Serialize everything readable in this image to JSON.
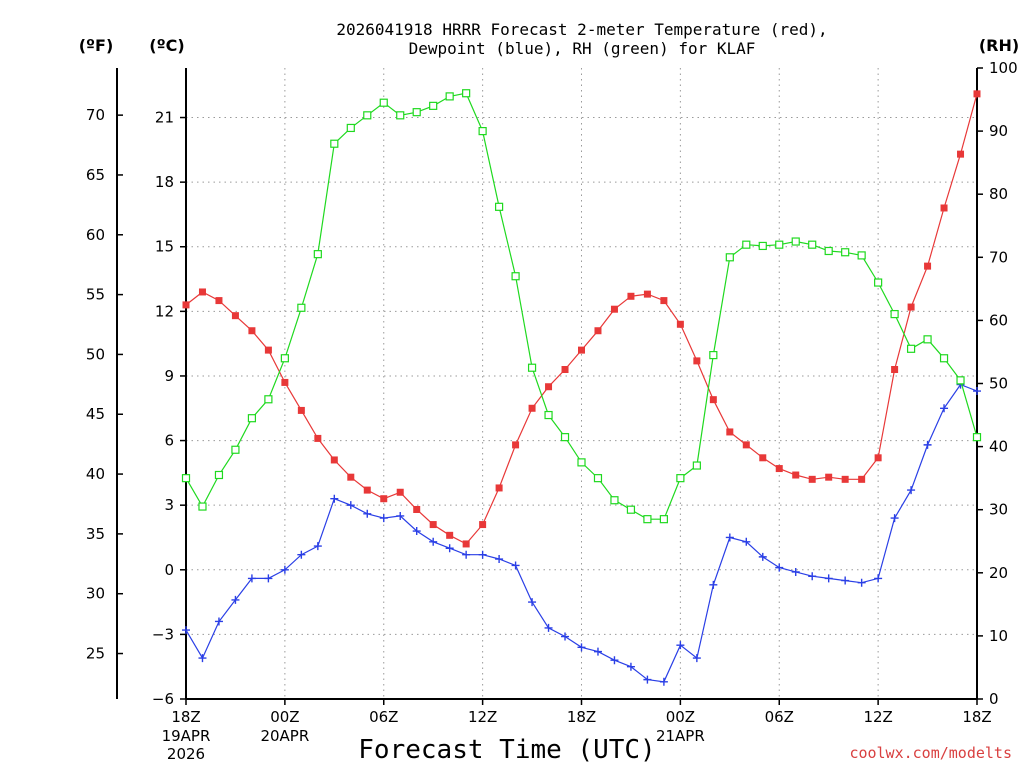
{
  "chart_data": {
    "type": "line",
    "title_lines": [
      "2026041918 HRRR Forecast 2-meter Temperature (red),",
      "Dewpoint (blue), RH (green) for KLAF"
    ],
    "xlabel": "Forecast Time (UTC)",
    "credit": "coolwx.com/modelts",
    "units": {
      "f": "(ºF)",
      "c": "(ºC)",
      "rh": "(RH)"
    },
    "x_range": [
      0,
      48
    ],
    "celsius_range": [
      -6,
      23.3
    ],
    "rh_range": [
      0,
      100
    ],
    "x_ticks": [
      {
        "h": 0,
        "label": "18Z",
        "extra": [
          "19APR",
          "2026"
        ]
      },
      {
        "h": 6,
        "label": "00Z",
        "extra": [
          "20APR"
        ]
      },
      {
        "h": 12,
        "label": "06Z",
        "extra": []
      },
      {
        "h": 18,
        "label": "12Z",
        "extra": []
      },
      {
        "h": 24,
        "label": "18Z",
        "extra": []
      },
      {
        "h": 30,
        "label": "00Z",
        "extra": [
          "21APR"
        ]
      },
      {
        "h": 36,
        "label": "06Z",
        "extra": []
      },
      {
        "h": 42,
        "label": "12Z",
        "extra": []
      },
      {
        "h": 48,
        "label": "18Z",
        "extra": []
      }
    ],
    "c_ticks": [
      {
        "v": -6,
        "label": "−6"
      },
      {
        "v": -3,
        "label": "−3"
      },
      {
        "v": 0,
        "label": "0"
      },
      {
        "v": 3,
        "label": "3"
      },
      {
        "v": 6,
        "label": "6"
      },
      {
        "v": 9,
        "label": "9"
      },
      {
        "v": 12,
        "label": "12"
      },
      {
        "v": 15,
        "label": "15"
      },
      {
        "v": 18,
        "label": "18"
      },
      {
        "v": 21,
        "label": "21"
      }
    ],
    "f_ticks": [
      {
        "v": 25,
        "label": "25"
      },
      {
        "v": 30,
        "label": "30"
      },
      {
        "v": 35,
        "label": "35"
      },
      {
        "v": 40,
        "label": "40"
      },
      {
        "v": 45,
        "label": "45"
      },
      {
        "v": 50,
        "label": "50"
      },
      {
        "v": 55,
        "label": "55"
      },
      {
        "v": 60,
        "label": "60"
      },
      {
        "v": 65,
        "label": "65"
      },
      {
        "v": 70,
        "label": "70"
      }
    ],
    "rh_ticks": [
      {
        "v": 0,
        "label": "0"
      },
      {
        "v": 10,
        "label": "10"
      },
      {
        "v": 20,
        "label": "20"
      },
      {
        "v": 30,
        "label": "30"
      },
      {
        "v": 40,
        "label": "40"
      },
      {
        "v": 50,
        "label": "50"
      },
      {
        "v": 60,
        "label": "60"
      },
      {
        "v": 70,
        "label": "70"
      },
      {
        "v": 80,
        "label": "80"
      },
      {
        "v": 90,
        "label": "90"
      },
      {
        "v": 100,
        "label": "100"
      }
    ],
    "series": [
      {
        "name": "2-meter Temperature",
        "unit": "C",
        "color": "#e83838",
        "marker": "filled-square",
        "values": [
          12.3,
          12.9,
          12.5,
          11.8,
          11.1,
          10.2,
          8.7,
          7.4,
          6.1,
          5.1,
          4.3,
          3.7,
          3.3,
          3.6,
          2.8,
          2.1,
          1.6,
          1.2,
          2.1,
          3.8,
          5.8,
          7.5,
          8.5,
          9.3,
          10.2,
          11.1,
          12.1,
          12.7,
          12.8,
          12.5,
          11.4,
          9.7,
          7.9,
          6.4,
          5.8,
          5.2,
          4.7,
          4.4,
          4.2,
          4.3,
          4.2,
          4.2,
          5.2,
          9.3,
          12.2,
          14.1,
          16.8,
          19.3,
          22.1
        ]
      },
      {
        "name": "Dewpoint",
        "unit": "C",
        "color": "#2a3fe6",
        "marker": "plus",
        "values": [
          -2.8,
          -4.1,
          -2.4,
          -1.4,
          -0.4,
          -0.4,
          0.0,
          0.7,
          1.1,
          3.3,
          3.0,
          2.6,
          2.4,
          2.5,
          1.8,
          1.3,
          1.0,
          0.7,
          0.7,
          0.5,
          0.2,
          -1.5,
          -2.7,
          -3.1,
          -3.6,
          -3.8,
          -4.2,
          -4.5,
          -5.1,
          -5.2,
          -3.5,
          -4.1,
          -0.7,
          1.5,
          1.3,
          0.6,
          0.1,
          -0.1,
          -0.3,
          -0.4,
          -0.5,
          -0.6,
          -0.4,
          2.4,
          3.7,
          5.8,
          7.5,
          8.6,
          8.3
        ]
      },
      {
        "name": "RH",
        "unit": "%",
        "color": "#1fd91f",
        "marker": "open-square",
        "values": [
          35,
          30.5,
          35.5,
          39.5,
          44.5,
          47.5,
          54,
          62,
          70.5,
          88,
          90.5,
          92.5,
          94.5,
          92.5,
          93,
          94,
          95.5,
          96,
          90,
          78,
          67,
          52.5,
          45,
          41.5,
          37.5,
          35,
          31.5,
          30,
          28.5,
          28.5,
          35,
          37,
          54.5,
          70,
          72,
          71.8,
          72,
          72.5,
          72,
          71,
          70.8,
          70.3,
          66,
          61,
          55.5,
          57,
          54,
          50.5,
          41.5
        ]
      }
    ]
  }
}
